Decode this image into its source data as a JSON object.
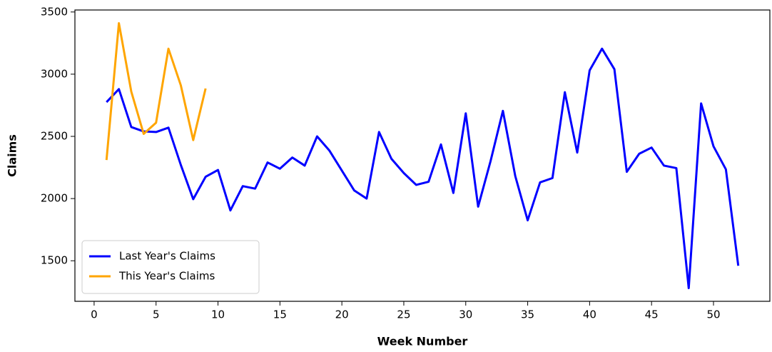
{
  "chart_data": {
    "type": "line",
    "x_label": "Week Number",
    "y_label": "Claims",
    "x": [
      1,
      2,
      3,
      4,
      5,
      6,
      7,
      8,
      9,
      10,
      11,
      12,
      13,
      14,
      15,
      16,
      17,
      18,
      19,
      20,
      21,
      22,
      23,
      24,
      25,
      26,
      27,
      28,
      29,
      30,
      31,
      32,
      33,
      34,
      35,
      36,
      37,
      38,
      39,
      40,
      41,
      42,
      43,
      44,
      45,
      46,
      47,
      48,
      49,
      50,
      51,
      52
    ],
    "series": [
      {
        "name": "Last Year's Claims",
        "color": "#0000ff",
        "values": [
          2775,
          2880,
          2575,
          2540,
          2535,
          2570,
          2270,
          1995,
          2175,
          2230,
          1905,
          2100,
          2080,
          2290,
          2240,
          2330,
          2265,
          2500,
          2385,
          2225,
          2065,
          2000,
          2535,
          2320,
          2205,
          2110,
          2135,
          2435,
          2045,
          2685,
          1935,
          2300,
          2705,
          2180,
          1825,
          2130,
          2165,
          2855,
          2370,
          3030,
          3205,
          3040,
          2215,
          2360,
          2410,
          2265,
          2245,
          1280,
          2765,
          2420,
          2235,
          1460
        ]
      },
      {
        "name": "This Year's Claims",
        "color": "#ffa500",
        "values": [
          2310,
          3410,
          2860,
          2520,
          2610,
          3205,
          2910,
          2470,
          2885,
          null,
          null,
          null,
          null,
          null,
          null,
          null,
          null,
          null,
          null,
          null,
          null,
          null,
          null,
          null,
          null,
          null,
          null,
          null,
          null,
          null,
          null,
          null,
          null,
          null,
          null,
          null,
          null,
          null,
          null,
          null,
          null,
          null,
          null,
          null,
          null,
          null,
          null,
          null,
          null,
          null,
          null,
          null
        ]
      }
    ],
    "xlim": [
      -1.55,
      54.55
    ],
    "ylim": [
      1174,
      3516
    ],
    "xticks": [
      0,
      5,
      10,
      15,
      20,
      25,
      30,
      35,
      40,
      45,
      50
    ],
    "yticks": [
      1500,
      2000,
      2500,
      3000,
      3500
    ],
    "legend": "lower left"
  }
}
